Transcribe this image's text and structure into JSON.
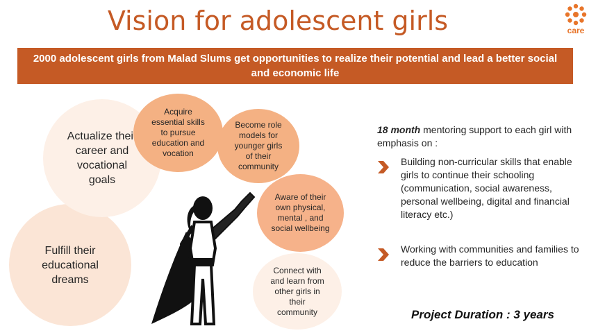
{
  "title": "Vision for adolescent girls",
  "logo": {
    "text": "care",
    "color": "#e8752a"
  },
  "banner": "2000 adolescent girls from Malad Slums get opportunities to realize their potential and lead a better social and economic life",
  "circles": {
    "fulfill": "Fulfill their educational dreams",
    "actualize": "Actualize their career and vocational goals",
    "acquire": "Acquire essential skills to pursue education and vocation",
    "role_models": "Become role models for younger girls of their community",
    "aware": "Aware of their own physical, mental , and social wellbeing",
    "connect": "Connect with and learn from other girls in their community"
  },
  "intro": {
    "emphasis": "18 month",
    "rest": " mentoring support to each girl with emphasis on :"
  },
  "bullets": [
    "Building non-curricular skills that enable girls to continue their schooling (communication, social awareness, personal wellbeing, digital and financial literacy etc.)",
    "Working with communities and families to reduce the barriers to education"
  ],
  "duration": "Project Duration : 3 years",
  "colors": {
    "accent": "#c55a25",
    "pale": "#fbe5d6",
    "peach": "#f4b183"
  }
}
